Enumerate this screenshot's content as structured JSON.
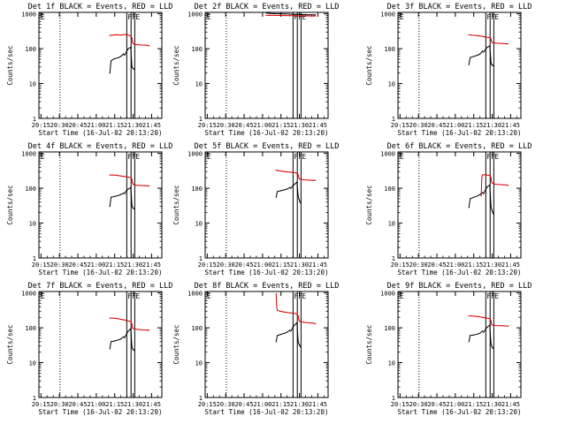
{
  "colors": {
    "events": "#000000",
    "lld": "#e00000",
    "axis": "#000000",
    "background": "#ffffff"
  },
  "shared_axes": {
    "xlabel": "Start Time (16-Jul-02 20:13:20)",
    "ylabel": "Counts/sec",
    "x_ticks": [
      "20:15",
      "20:30",
      "20:45",
      "21:00",
      "21:15",
      "21:30",
      "21:45"
    ],
    "x_tick_minutes": [
      15,
      30,
      45,
      60,
      75,
      90,
      105
    ],
    "y_ticks": [
      "1",
      "10",
      "100",
      "1000"
    ],
    "x_range_minutes": [
      13.33,
      113.33
    ],
    "y_range": [
      1,
      1100
    ],
    "log_y": true,
    "markers": [
      {
        "label": "",
        "minute": 30.5,
        "style": "dotted"
      },
      {
        "label": "F",
        "minute": 84.8,
        "style": "solid"
      },
      {
        "label": "F",
        "minute": 88.3,
        "style": "solid"
      },
      {
        "label": "E",
        "minute": 91.3,
        "style": "solid"
      }
    ],
    "corner_label": "E"
  },
  "chart_data": [
    {
      "type": "line",
      "title": "Det 1f BLACK = Events, RED = LLD",
      "series": [
        {
          "name": "Events",
          "x": [
            71,
            72,
            75,
            78,
            80,
            82,
            83,
            84.5,
            86,
            88,
            88.5,
            89,
            89.5,
            90,
            90.5,
            91
          ],
          "y": [
            20,
            45,
            52,
            55,
            60,
            70,
            65,
            80,
            100,
            110,
            55,
            30,
            28,
            27,
            26,
            25
          ]
        },
        {
          "name": "LLD",
          "x": [
            71,
            73,
            76,
            78,
            80,
            82,
            84,
            85,
            87,
            88,
            89,
            89.5,
            90,
            91,
            93,
            96,
            99,
            101,
            102,
            103
          ],
          "y": [
            240,
            245,
            250,
            248,
            245,
            252,
            255,
            250,
            240,
            230,
            200,
            150,
            140,
            135,
            130,
            128,
            127,
            125,
            125,
            120
          ]
        }
      ]
    },
    {
      "type": "line",
      "title": "Det 2f BLACK = Events, RED = LLD",
      "series": [
        {
          "name": "Events",
          "x": [
            63,
            66,
            70,
            74,
            78,
            82,
            86,
            88,
            92,
            96,
            100,
            103
          ],
          "y": [
            1050,
            1030,
            1010,
            1000,
            990,
            980,
            970,
            960,
            950,
            940,
            935,
            930
          ]
        },
        {
          "name": "LLD",
          "x": [
            63,
            66,
            70,
            74,
            78,
            82,
            86,
            88,
            92,
            96,
            100,
            103
          ],
          "y": [
            900,
            905,
            900,
            895,
            890,
            885,
            880,
            875,
            870,
            870,
            868,
            865
          ]
        }
      ]
    },
    {
      "type": "line",
      "title": "Det 3f BLACK = Events, RED = LLD",
      "series": [
        {
          "name": "Events",
          "x": [
            71,
            72,
            75,
            78,
            80,
            82,
            83,
            84.5,
            86,
            88,
            88.5,
            89,
            89.5,
            90,
            90.5,
            91
          ],
          "y": [
            35,
            55,
            60,
            65,
            70,
            85,
            80,
            95,
            110,
            120,
            70,
            40,
            35,
            34,
            33,
            32
          ]
        },
        {
          "name": "LLD",
          "x": [
            71,
            73,
            76,
            78,
            80,
            82,
            84,
            85,
            87,
            88,
            89,
            89.5,
            90,
            91,
            93,
            96,
            99,
            101,
            102,
            103
          ],
          "y": [
            250,
            245,
            240,
            235,
            230,
            225,
            220,
            215,
            210,
            205,
            190,
            160,
            150,
            148,
            145,
            142,
            140,
            138,
            138,
            140
          ]
        }
      ]
    },
    {
      "type": "line",
      "title": "Det 4f BLACK = Events, RED = LLD",
      "series": [
        {
          "name": "Events",
          "x": [
            71,
            72,
            75,
            78,
            80,
            82,
            83,
            84.5,
            86,
            88,
            88.5,
            89,
            89.5,
            90,
            90.5,
            91
          ],
          "y": [
            30,
            55,
            58,
            62,
            66,
            72,
            70,
            85,
            95,
            105,
            60,
            32,
            28,
            27,
            26,
            25
          ]
        },
        {
          "name": "LLD",
          "x": [
            71,
            73,
            76,
            78,
            80,
            82,
            84,
            85,
            87,
            88,
            89,
            89.5,
            90,
            91,
            93,
            96,
            99,
            101,
            102,
            103
          ],
          "y": [
            240,
            240,
            235,
            230,
            225,
            220,
            215,
            210,
            205,
            200,
            180,
            140,
            130,
            125,
            122,
            120,
            118,
            118,
            117,
            115
          ]
        }
      ]
    },
    {
      "type": "line",
      "title": "Det 5f BLACK = Events, RED = LLD",
      "series": [
        {
          "name": "Events",
          "x": [
            71,
            72,
            75,
            78,
            80,
            82,
            83,
            84.5,
            86,
            88,
            88.5,
            89,
            89.5,
            90,
            90.5,
            91
          ],
          "y": [
            55,
            80,
            85,
            90,
            95,
            105,
            100,
            115,
            130,
            150,
            90,
            60,
            50,
            45,
            40,
            38
          ]
        },
        {
          "name": "LLD",
          "x": [
            71,
            73,
            76,
            78,
            80,
            82,
            84,
            85,
            87,
            88,
            89,
            89.5,
            90,
            91,
            93,
            96,
            99,
            101,
            102,
            103
          ],
          "y": [
            330,
            320,
            310,
            300,
            295,
            290,
            285,
            280,
            275,
            270,
            240,
            200,
            185,
            180,
            175,
            172,
            170,
            168,
            168,
            170
          ]
        }
      ]
    },
    {
      "type": "line",
      "title": "Det 6f BLACK = Events, RED = LLD",
      "series": [
        {
          "name": "Events",
          "x": [
            71,
            72,
            75,
            78,
            80,
            82,
            83,
            84.5,
            86,
            88,
            88.5,
            89,
            89.5,
            90,
            90.5,
            91
          ],
          "y": [
            28,
            50,
            55,
            60,
            66,
            75,
            70,
            90,
            110,
            125,
            60,
            30,
            25,
            22,
            20,
            18
          ]
        },
        {
          "name": "LLD",
          "x": [
            81,
            81.5,
            82,
            84,
            85,
            87,
            88,
            89,
            89.5,
            90,
            91,
            93,
            96,
            99,
            101,
            102,
            103
          ],
          "y": [
            60,
            200,
            240,
            245,
            240,
            235,
            230,
            200,
            150,
            140,
            135,
            130,
            128,
            125,
            125,
            122,
            120
          ]
        }
      ]
    },
    {
      "type": "line",
      "title": "Det 7f BLACK = Events, RED = LLD",
      "series": [
        {
          "name": "Events",
          "x": [
            71,
            72,
            75,
            78,
            80,
            82,
            83,
            84.5,
            86,
            88,
            88.5,
            89,
            89.5,
            90,
            90.5,
            91
          ],
          "y": [
            25,
            40,
            42,
            45,
            48,
            55,
            52,
            65,
            80,
            95,
            50,
            28,
            25,
            24,
            23,
            22
          ]
        },
        {
          "name": "LLD",
          "x": [
            71,
            73,
            76,
            78,
            80,
            82,
            84,
            85,
            87,
            88,
            89,
            89.5,
            90,
            91,
            93,
            96,
            99,
            101,
            102,
            103
          ],
          "y": [
            190,
            190,
            185,
            180,
            175,
            170,
            165,
            160,
            155,
            150,
            130,
            100,
            95,
            92,
            90,
            88,
            87,
            86,
            86,
            85
          ]
        }
      ]
    },
    {
      "type": "line",
      "title": "Det 8f BLACK = Events, RED = LLD",
      "series": [
        {
          "name": "Events",
          "x": [
            71,
            72,
            75,
            78,
            80,
            82,
            83,
            84.5,
            86,
            88,
            88.5,
            89,
            89.5,
            90,
            90.5,
            91
          ],
          "y": [
            40,
            60,
            65,
            70,
            75,
            85,
            80,
            100,
            120,
            140,
            70,
            40,
            35,
            32,
            30,
            28
          ]
        },
        {
          "name": "LLD",
          "x": [
            71,
            71.5,
            72,
            74,
            76,
            78,
            80,
            82,
            84,
            85,
            87,
            88,
            89,
            89.5,
            90,
            91,
            93,
            96,
            99,
            101,
            102,
            103
          ],
          "y": [
            950,
            400,
            320,
            300,
            290,
            280,
            275,
            270,
            265,
            260,
            255,
            250,
            220,
            170,
            155,
            150,
            145,
            140,
            138,
            135,
            135,
            130
          ]
        }
      ]
    },
    {
      "type": "line",
      "title": "Det 9f BLACK = Events, RED = LLD",
      "series": [
        {
          "name": "Events",
          "x": [
            71,
            72,
            75,
            78,
            80,
            82,
            83,
            84.5,
            86,
            88,
            88.5,
            89,
            89.5,
            90,
            90.5,
            91
          ],
          "y": [
            40,
            60,
            62,
            66,
            70,
            80,
            75,
            90,
            105,
            120,
            60,
            35,
            30,
            28,
            26,
            25
          ]
        },
        {
          "name": "LLD",
          "x": [
            71,
            73,
            76,
            78,
            80,
            82,
            84,
            85,
            87,
            88,
            89,
            89.5,
            90,
            91,
            93,
            96,
            99,
            101,
            102,
            103
          ],
          "y": [
            220,
            220,
            215,
            210,
            205,
            200,
            195,
            190,
            185,
            180,
            160,
            125,
            120,
            118,
            116,
            115,
            114,
            113,
            112,
            112
          ]
        }
      ]
    }
  ]
}
